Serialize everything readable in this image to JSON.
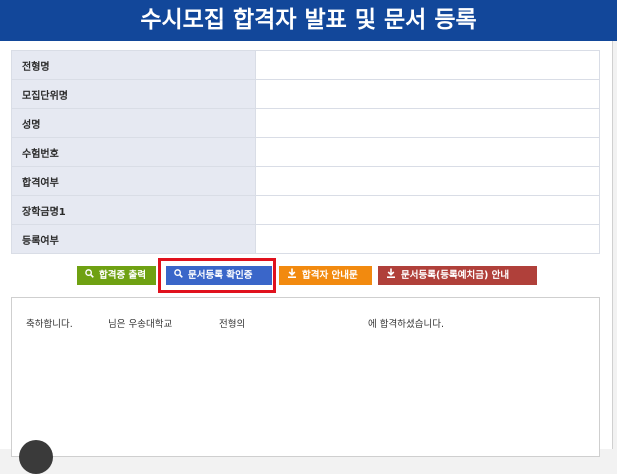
{
  "header": {
    "title": "수시모집 합격자 발표 및 문서 등록"
  },
  "info_rows": [
    {
      "label": "전형명",
      "value": ""
    },
    {
      "label": "모집단위명",
      "value": ""
    },
    {
      "label": "성명",
      "value": ""
    },
    {
      "label": "수험번호",
      "value": ""
    },
    {
      "label": "합격여부",
      "value": ""
    },
    {
      "label": "장학금명1",
      "value": ""
    },
    {
      "label": "등록여부",
      "value": ""
    }
  ],
  "buttons": {
    "print_certificate": "합격증 출력",
    "doc_reg_confirm": "문서등록 확인증",
    "admission_guide": "합격자 안내문",
    "doc_reg_guide": "문서등록(등록예치금) 안내"
  },
  "icons": {
    "search": "search-icon",
    "download": "download-icon"
  },
  "colors": {
    "header": "#12479a",
    "label_bg": "#e6e9f2",
    "btn_green": "#6fa112",
    "btn_blue": "#3a66c9",
    "btn_orange": "#f28a0f",
    "btn_red": "#b0403a",
    "highlight": "#e0111d"
  },
  "message": {
    "congrats": "축하합니다.",
    "suffix_name": "님은 우송대학교",
    "suffix_track": "전형의",
    "suffix_passed": "에 합격하셨습니다."
  }
}
